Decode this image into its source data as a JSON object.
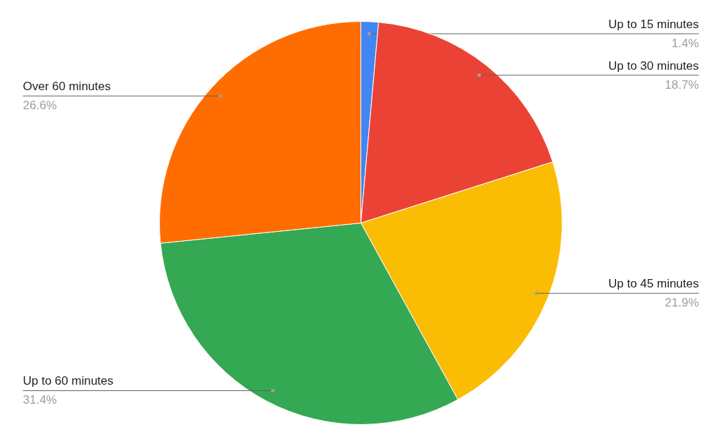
{
  "chart_data": {
    "type": "pie",
    "categories": [
      "Up to 15 minutes",
      "Up to 30 minutes",
      "Up to 45 minutes",
      "Up to 60 minutes",
      "Over 60 minutes"
    ],
    "values": [
      1.4,
      18.7,
      21.9,
      31.4,
      26.6
    ],
    "colors": [
      "#4285f4",
      "#ea4335",
      "#fbbc04",
      "#34a853",
      "#ff6d01"
    ],
    "value_labels": [
      "1.4%",
      "18.7%",
      "21.9%",
      "31.4%",
      "26.6%"
    ]
  }
}
